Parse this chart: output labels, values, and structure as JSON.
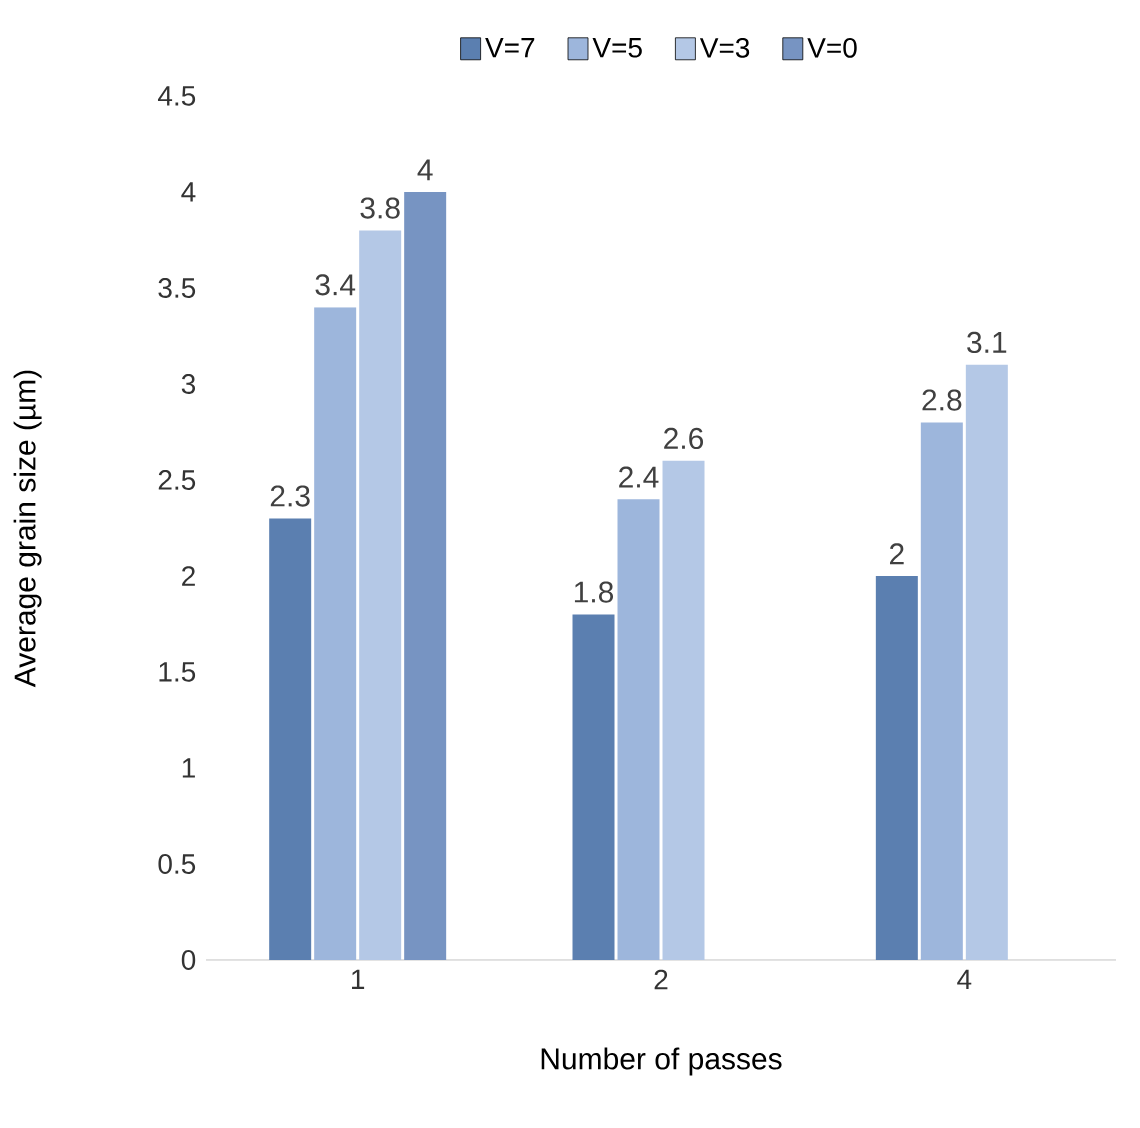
{
  "chart_data": {
    "type": "bar",
    "xlabel": "Number of passes",
    "ylabel": "Average grain size (µm)",
    "categories": [
      "1",
      "2",
      "4"
    ],
    "series": [
      {
        "name": "V=7",
        "color": "#5b7fb0",
        "values": [
          2.3,
          1.8,
          2
        ]
      },
      {
        "name": "V=5",
        "color": "#9db6dc",
        "values": [
          3.4,
          2.4,
          2.8
        ]
      },
      {
        "name": "V=3",
        "color": "#b4c8e6",
        "values": [
          3.8,
          2.6,
          3.1
        ]
      },
      {
        "name": "V=0",
        "color": "#7794c2",
        "values": [
          4,
          null,
          null
        ]
      }
    ],
    "ylim": [
      0,
      4.5
    ],
    "yticks": [
      0,
      0.5,
      1,
      1.5,
      2,
      2.5,
      3,
      3.5,
      4,
      4.5
    ],
    "data_labels": true,
    "legend": "top",
    "grid": false
  }
}
